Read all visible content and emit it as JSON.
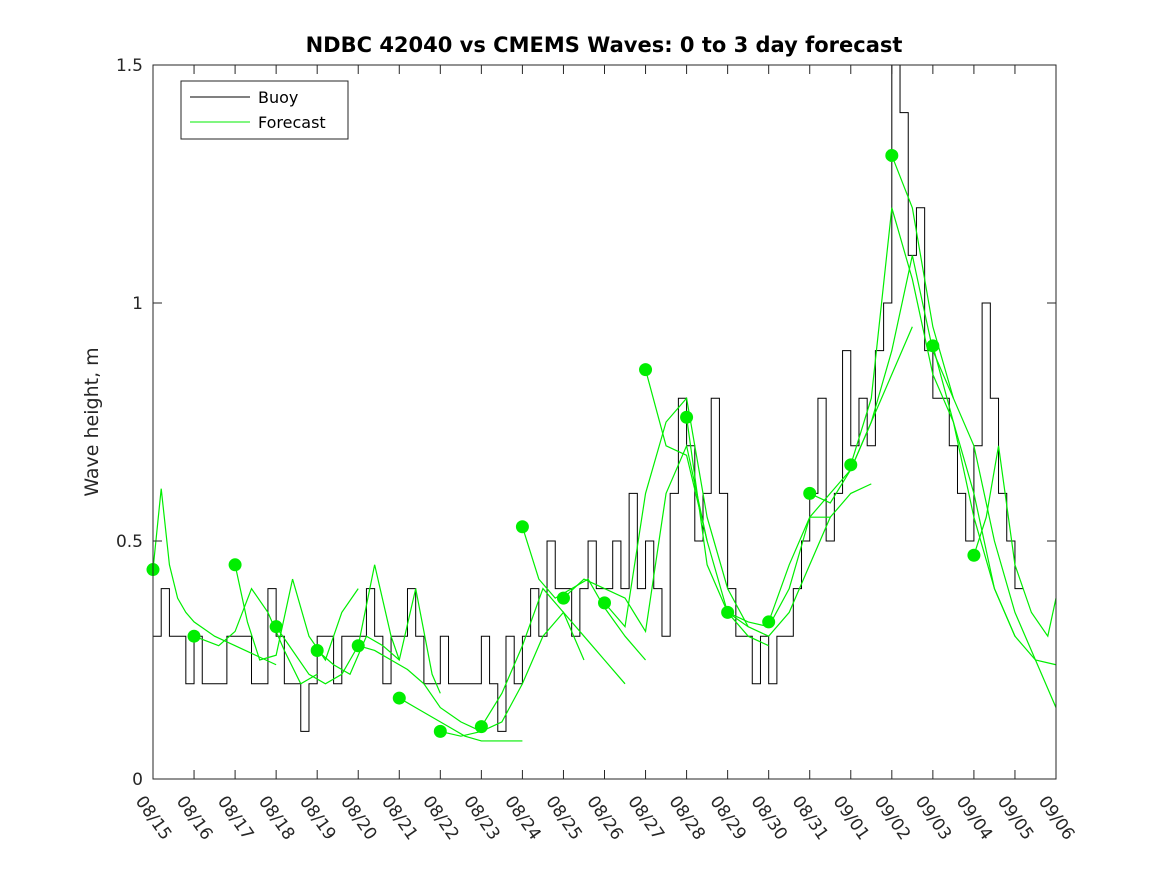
{
  "chart_data": {
    "type": "line",
    "title": "NDBC 42040 vs CMEMS Waves: 0 to 3 day forecast",
    "xlabel": "",
    "ylabel": "Wave height, m",
    "x_tick_labels": [
      "08/15",
      "08/16",
      "08/17",
      "08/18",
      "08/19",
      "08/20",
      "08/21",
      "08/22",
      "08/23",
      "08/24",
      "08/25",
      "08/26",
      "08/27",
      "08/28",
      "08/29",
      "08/30",
      "08/31",
      "09/01",
      "09/02",
      "09/03",
      "09/04",
      "09/05",
      "09/06"
    ],
    "xlim_days": [
      0,
      22
    ],
    "y_ticks": [
      0,
      0.5,
      1,
      1.5
    ],
    "y_tick_labels": [
      "0",
      "0.5",
      "1",
      "1.5"
    ],
    "ylim": [
      0,
      1.5
    ],
    "grid": false,
    "legend": {
      "position": "top-left",
      "entries": [
        "Buoy",
        "Forecast"
      ]
    },
    "colors": {
      "buoy": "#000000",
      "forecast": "#00ee00",
      "marker": "#00ee00",
      "axes": "#262626"
    },
    "series": [
      {
        "name": "Buoy",
        "x": [
          0,
          0.2,
          0.4,
          0.6,
          0.8,
          1.0,
          1.2,
          1.4,
          1.6,
          1.8,
          2.0,
          2.2,
          2.4,
          2.6,
          2.8,
          3.0,
          3.2,
          3.4,
          3.6,
          3.8,
          4.0,
          4.2,
          4.4,
          4.6,
          4.8,
          5.0,
          5.2,
          5.4,
          5.6,
          5.8,
          6.0,
          6.2,
          6.4,
          6.6,
          6.8,
          7.0,
          7.2,
          7.4,
          7.6,
          7.8,
          8.0,
          8.2,
          8.4,
          8.6,
          8.8,
          9.0,
          9.2,
          9.4,
          9.6,
          9.8,
          10.0,
          10.2,
          10.4,
          10.6,
          10.8,
          11.0,
          11.2,
          11.4,
          11.6,
          11.8,
          12.0,
          12.2,
          12.4,
          12.6,
          12.8,
          13.0,
          13.2,
          13.4,
          13.6,
          13.8,
          14.0,
          14.2,
          14.4,
          14.6,
          14.8,
          15.0,
          15.2,
          15.4,
          15.6,
          15.8,
          16.0,
          16.2,
          16.4,
          16.6,
          16.8,
          17.0,
          17.2,
          17.4,
          17.6,
          17.8,
          18.0,
          18.2,
          18.4,
          18.6,
          18.8,
          19.0,
          19.2,
          19.4,
          19.6,
          19.8,
          20.0,
          20.2,
          20.4,
          20.6,
          20.8,
          21.0,
          21.2
        ],
        "y": [
          0.3,
          0.4,
          0.3,
          0.3,
          0.2,
          0.3,
          0.2,
          0.2,
          0.2,
          0.3,
          0.3,
          0.3,
          0.2,
          0.2,
          0.4,
          0.3,
          0.2,
          0.2,
          0.1,
          0.2,
          0.3,
          0.3,
          0.2,
          0.3,
          0.3,
          0.3,
          0.4,
          0.3,
          0.2,
          0.3,
          0.3,
          0.4,
          0.3,
          0.2,
          0.2,
          0.3,
          0.2,
          0.2,
          0.2,
          0.2,
          0.3,
          0.2,
          0.1,
          0.3,
          0.2,
          0.3,
          0.4,
          0.3,
          0.5,
          0.4,
          0.4,
          0.3,
          0.4,
          0.5,
          0.4,
          0.4,
          0.5,
          0.4,
          0.6,
          0.4,
          0.5,
          0.4,
          0.3,
          0.6,
          0.8,
          0.7,
          0.5,
          0.6,
          0.8,
          0.6,
          0.4,
          0.3,
          0.3,
          0.2,
          0.3,
          0.2,
          0.3,
          0.3,
          0.4,
          0.5,
          0.6,
          0.8,
          0.5,
          0.6,
          0.9,
          0.7,
          0.8,
          0.7,
          0.9,
          1.0,
          1.5,
          1.4,
          1.1,
          1.2,
          0.9,
          0.8,
          0.8,
          0.7,
          0.6,
          0.5,
          0.7,
          1.0,
          0.8,
          0.6,
          0.5,
          0.4,
          0.4
        ]
      },
      {
        "name": "Forecast",
        "runs": [
          {
            "x": [
              0,
              0.2,
              0.4,
              0.6,
              0.8,
              1.0,
              1.5,
              2.0,
              2.5,
              3.0
            ],
            "y": [
              0.44,
              0.61,
              0.45,
              0.38,
              0.35,
              0.33,
              0.3,
              0.28,
              0.26,
              0.24
            ]
          },
          {
            "x": [
              1,
              1.3,
              1.6,
              2.0,
              2.4,
              2.8,
              3.2,
              3.6,
              4.0
            ],
            "y": [
              0.3,
              0.29,
              0.28,
              0.31,
              0.4,
              0.35,
              0.27,
              0.2,
              0.22
            ]
          },
          {
            "x": [
              2,
              2.3,
              2.6,
              3.0,
              3.4,
              3.8,
              4.2,
              4.6,
              5.0
            ],
            "y": [
              0.45,
              0.33,
              0.25,
              0.26,
              0.42,
              0.3,
              0.25,
              0.35,
              0.4
            ]
          },
          {
            "x": [
              3,
              3.4,
              3.8,
              4.2,
              4.6,
              5.0,
              5.4,
              5.8,
              6.0
            ],
            "y": [
              0.32,
              0.27,
              0.22,
              0.2,
              0.22,
              0.28,
              0.45,
              0.3,
              0.25
            ]
          },
          {
            "x": [
              4,
              4.4,
              4.8,
              5.2,
              5.6,
              6.0,
              6.4,
              6.8,
              7.0
            ],
            "y": [
              0.27,
              0.24,
              0.22,
              0.3,
              0.28,
              0.25,
              0.4,
              0.22,
              0.18
            ]
          },
          {
            "x": [
              5,
              5.4,
              5.8,
              6.2,
              6.6,
              7.0,
              7.5,
              8.0
            ],
            "y": [
              0.28,
              0.27,
              0.25,
              0.23,
              0.2,
              0.15,
              0.12,
              0.1
            ]
          },
          {
            "x": [
              6,
              6.4,
              6.8,
              7.2,
              7.6,
              8.0,
              8.5,
              9.0
            ],
            "y": [
              0.17,
              0.15,
              0.13,
              0.11,
              0.09,
              0.08,
              0.08,
              0.08
            ]
          },
          {
            "x": [
              7,
              7.5,
              8.0,
              8.5,
              9.0,
              9.5,
              10.0,
              10.5
            ],
            "y": [
              0.1,
              0.09,
              0.1,
              0.12,
              0.2,
              0.3,
              0.35,
              0.25
            ]
          },
          {
            "x": [
              8,
              8.5,
              9.0,
              9.5,
              10.0,
              10.5,
              11.0,
              11.5
            ],
            "y": [
              0.11,
              0.18,
              0.28,
              0.4,
              0.35,
              0.3,
              0.25,
              0.2
            ]
          },
          {
            "x": [
              9,
              9.4,
              9.8,
              10.2,
              10.6,
              11.0,
              11.5,
              12.0
            ],
            "y": [
              0.53,
              0.42,
              0.38,
              0.4,
              0.42,
              0.36,
              0.3,
              0.25
            ]
          },
          {
            "x": [
              10,
              10.5,
              11.0,
              11.5,
              12.0,
              12.5,
              13.0,
              13.5
            ],
            "y": [
              0.38,
              0.42,
              0.4,
              0.38,
              0.31,
              0.6,
              0.7,
              0.5
            ]
          },
          {
            "x": [
              11,
              11.5,
              12.0,
              12.5,
              13.0,
              13.5,
              14.0,
              14.5
            ],
            "y": [
              0.37,
              0.32,
              0.6,
              0.75,
              0.8,
              0.55,
              0.4,
              0.32
            ]
          },
          {
            "x": [
              12,
              12.5,
              13.0,
              13.5,
              14.0,
              14.5,
              15.0
            ],
            "y": [
              0.86,
              0.7,
              0.68,
              0.5,
              0.35,
              0.3,
              0.28
            ]
          },
          {
            "x": [
              13,
              13.5,
              14.0,
              14.5,
              15.0,
              15.5,
              16.0,
              16.5
            ],
            "y": [
              0.76,
              0.45,
              0.35,
              0.32,
              0.3,
              0.35,
              0.45,
              0.55
            ]
          },
          {
            "x": [
              14,
              14.5,
              15.0,
              15.5,
              16.0,
              16.5,
              17.0,
              17.5
            ],
            "y": [
              0.35,
              0.33,
              0.32,
              0.4,
              0.55,
              0.55,
              0.6,
              0.62
            ]
          },
          {
            "x": [
              15,
              15.5,
              16.0,
              16.5,
              17.0,
              17.5,
              18.0,
              18.5
            ],
            "y": [
              0.33,
              0.45,
              0.55,
              0.6,
              0.65,
              0.75,
              0.85,
              0.95
            ]
          },
          {
            "x": [
              16,
              16.5,
              17.0,
              17.5,
              18.0,
              18.5,
              19.0,
              19.5
            ],
            "y": [
              0.6,
              0.58,
              0.65,
              0.75,
              0.9,
              1.1,
              0.9,
              0.8
            ]
          },
          {
            "x": [
              17,
              17.5,
              18.0,
              18.5,
              19.0,
              19.5,
              20.0,
              20.5,
              21.0
            ],
            "y": [
              0.66,
              0.8,
              1.2,
              1.05,
              0.85,
              0.75,
              0.55,
              0.4,
              0.3
            ]
          },
          {
            "x": [
              18,
              18.5,
              19.0,
              19.5,
              20.0,
              20.5,
              21.0,
              21.5,
              22.0
            ],
            "y": [
              1.31,
              1.2,
              0.95,
              0.8,
              0.7,
              0.5,
              0.35,
              0.25,
              0.15
            ]
          },
          {
            "x": [
              19,
              19.5,
              20.0,
              20.5,
              21.0,
              21.5,
              22.0
            ],
            "y": [
              0.91,
              0.75,
              0.6,
              0.4,
              0.3,
              0.25,
              0.24
            ]
          },
          {
            "x": [
              20,
              20.3,
              20.6,
              21.0,
              21.4,
              21.8,
              22.0
            ],
            "y": [
              0.47,
              0.55,
              0.7,
              0.45,
              0.35,
              0.3,
              0.38
            ]
          }
        ],
        "markers": {
          "x": [
            0,
            1,
            2,
            3,
            4,
            5,
            6,
            7,
            8,
            9,
            10,
            11,
            12,
            13,
            14,
            15,
            16,
            17,
            18,
            19,
            20
          ],
          "y": [
            0.44,
            0.3,
            0.45,
            0.32,
            0.27,
            0.28,
            0.17,
            0.1,
            0.11,
            0.53,
            0.38,
            0.37,
            0.86,
            0.76,
            0.35,
            0.33,
            0.6,
            0.66,
            1.31,
            0.91,
            0.47
          ]
        }
      }
    ]
  }
}
